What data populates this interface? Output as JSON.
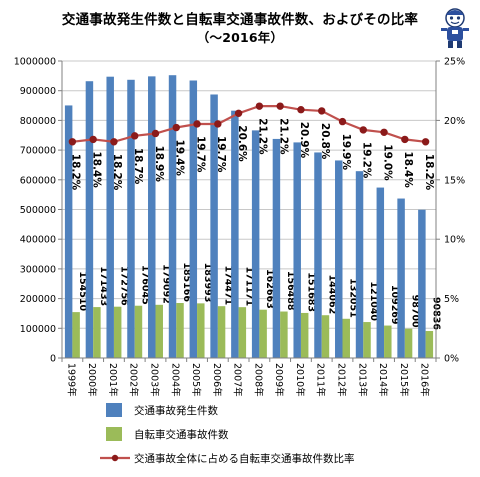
{
  "chart_data": {
    "type": "bar",
    "title": "交通事故発生件数と自転車交通事故件数、およびその比率",
    "subtitle": "（～2016年）",
    "categories": [
      "1999年",
      "2000年",
      "2001年",
      "2002年",
      "2003年",
      "2004年",
      "2005年",
      "2006年",
      "2007年",
      "2008年",
      "2009年",
      "2010年",
      "2011年",
      "2012年",
      "2013年",
      "2014年",
      "2015年",
      "2016年"
    ],
    "series": [
      {
        "name": "交通事故発生件数",
        "type": "bar",
        "axis": "left",
        "color": "#4f81bd",
        "values": [
          850363,
          931950,
          947169,
          936721,
          948281,
          952191,
          934339,
          887267,
          832704,
          766394,
          737637,
          725924,
          692084,
          665138,
          629033,
          573842,
          536899,
          499201
        ]
      },
      {
        "name": "自転車交通事故件数",
        "type": "bar",
        "axis": "left",
        "color": "#9bbb59",
        "values": [
          154510,
          171433,
          172756,
          176045,
          179092,
          185166,
          183993,
          174471,
          171171,
          162663,
          156488,
          151683,
          144062,
          132051,
          121040,
          109269,
          98700,
          90836
        ],
        "labels": [
          "154510",
          "171433",
          "172756",
          "176045",
          "179092",
          "185166",
          "183993",
          "174471",
          "171171",
          "162663",
          "156488",
          "151683",
          "144062",
          "132051",
          "121040",
          "109269",
          "98700",
          "90836"
        ]
      },
      {
        "name": "交通事故全体に占める自転車交通事故件数比率",
        "type": "line",
        "axis": "right",
        "color": "#c0504d",
        "values": [
          18.2,
          18.4,
          18.2,
          18.7,
          18.9,
          19.4,
          19.7,
          19.7,
          20.6,
          21.2,
          21.2,
          20.9,
          20.8,
          19.9,
          19.2,
          19.0,
          18.4,
          18.2
        ],
        "labels": [
          "18.2%",
          "18.4%",
          "18.2%",
          "18.7%",
          "18.9%",
          "19.4%",
          "19.7%",
          "19.7%",
          "20.6%",
          "21.2%",
          "21.2%",
          "20.9%",
          "20.8%",
          "19.9%",
          "19.2%",
          "19.0%",
          "18.4%",
          "18.2%"
        ]
      }
    ],
    "y_left": {
      "min": 0,
      "max": 1000000,
      "step": 100000,
      "ticks": [
        "0",
        "100000",
        "200000",
        "300000",
        "400000",
        "500000",
        "600000",
        "700000",
        "800000",
        "900000",
        "1000000"
      ]
    },
    "y_right": {
      "min": 0,
      "max": 25,
      "step": 5,
      "ticks": [
        "0%",
        "5%",
        "10%",
        "15%",
        "20%",
        "25%"
      ]
    },
    "grid": true,
    "legend_position": "bottom"
  }
}
